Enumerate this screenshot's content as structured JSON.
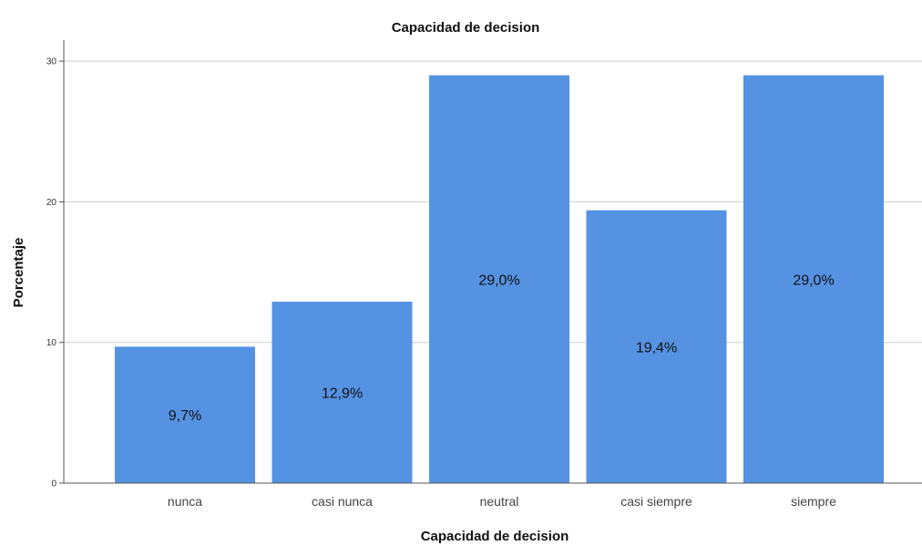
{
  "chart_data": {
    "type": "bar",
    "title": "Capacidad de decision",
    "xlabel": "Capacidad de decision",
    "ylabel": "Porcentaje",
    "categories": [
      "nunca",
      "casi nunca",
      "neutral",
      "casi siempre",
      "siempre"
    ],
    "values": [
      9.7,
      12.9,
      29.0,
      19.4,
      29.0
    ],
    "data_labels": [
      "9,7%",
      "12,9%",
      "29,0%",
      "19,4%",
      "29,0%"
    ],
    "yticks": [
      0,
      10,
      20,
      30
    ],
    "ylim": [
      0,
      31.5
    ],
    "grid": true,
    "legend": "none",
    "bar_color": "#5592e2"
  }
}
